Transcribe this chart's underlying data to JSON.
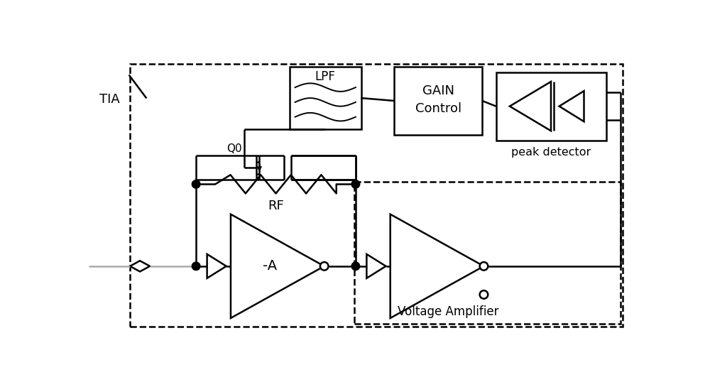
{
  "fig_width": 10.0,
  "fig_height": 5.38,
  "dpi": 100,
  "bg": "#ffffff",
  "lc": "#000000",
  "lw": 1.8,
  "gray": "#aaaaaa",
  "labels": {
    "TIA": "TIA",
    "LPF": "LPF",
    "GAIN1": "GAIN",
    "GAIN2": "Control",
    "PD": "peak detector",
    "RF": "RF",
    "A1": "-A",
    "VA": "Voltage Amplifier",
    "Q0": "Q0"
  }
}
